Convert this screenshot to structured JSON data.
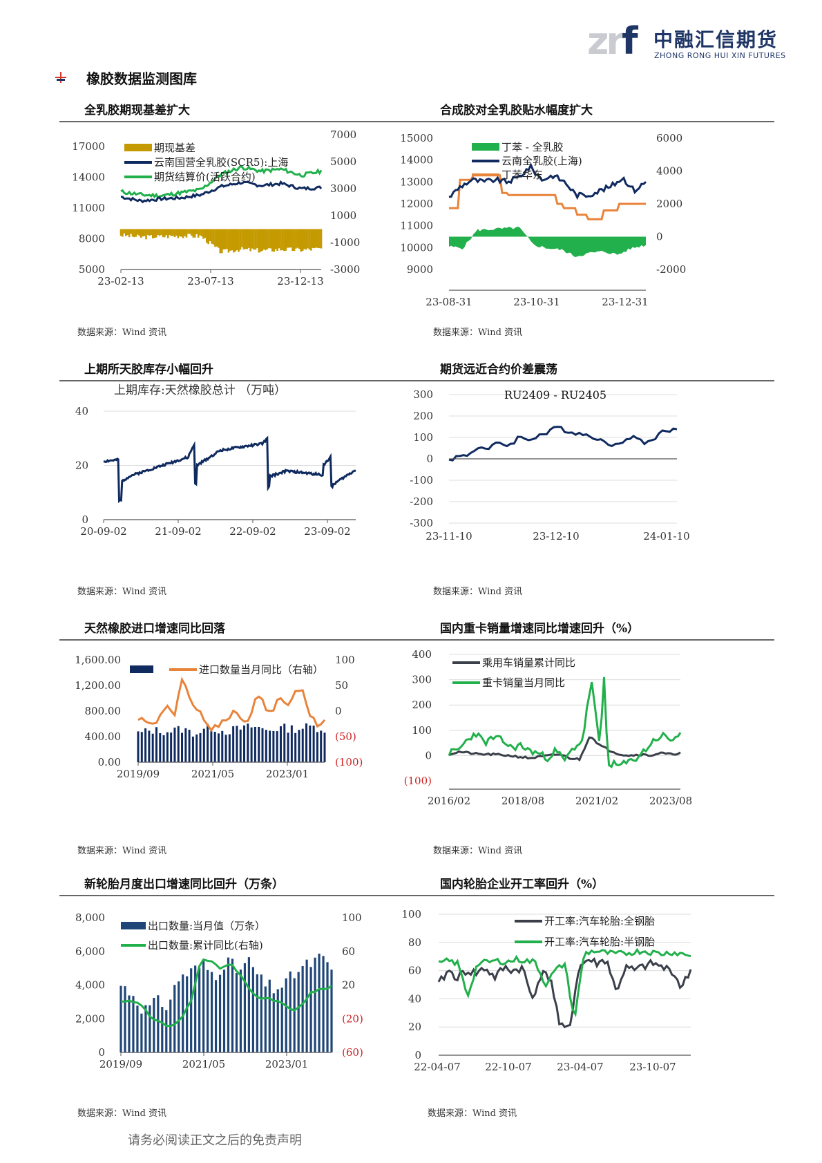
{
  "header": {
    "logo_mark": "zrf",
    "logo_cn": "中融汇信期货",
    "logo_en": "ZHONG RONG HUI XIN FUTURES",
    "section_title": "橡胶数据监测图库"
  },
  "footer_text": "请务必阅读正文之后的免责声明",
  "source_text": "数据来源：Wind 资讯",
  "colors": {
    "navy": "#0f2a5f",
    "green": "#21b04b",
    "gold": "#c49a00",
    "orange": "#e8833a",
    "gray": "#3a3f4a",
    "red": "#cc2222"
  },
  "charts": [
    {
      "id": "c1",
      "panel_title": "全乳胶期现基差扩大",
      "type": "line_bar",
      "x_ticks": [
        "23-02-13",
        "23-07-13",
        "23-12-13"
      ],
      "y_left": {
        "min": 5000,
        "max": 20000,
        "ticks": [
          "5000",
          "8000",
          "11000",
          "14000",
          "17000"
        ]
      },
      "y_right": {
        "min": -3000,
        "max": 7000,
        "ticks": [
          "-3000",
          "-1000",
          "1000",
          "3000",
          "5000",
          "7000"
        ]
      },
      "series": [
        {
          "name": "期现基差",
          "kind": "bar",
          "axis": "right",
          "color": "#c49a00"
        },
        {
          "name": "云南国营全乳胶(SCR5):上海",
          "kind": "line",
          "axis": "left",
          "color": "#0f2a5f"
        },
        {
          "name": "期货结算价(活跃合约)",
          "kind": "line",
          "axis": "left",
          "color": "#21b04b"
        }
      ]
    },
    {
      "id": "c2",
      "panel_title": "合成胶对全乳胶贴水幅度扩大",
      "type": "line_area",
      "x_ticks": [
        "23-08-31",
        "23-10-31",
        "23-12-31"
      ],
      "y_left": {
        "min": 9000,
        "max": 15000,
        "ticks": [
          "9000",
          "10000",
          "11000",
          "12000",
          "13000",
          "14000",
          "15000"
        ]
      },
      "y_right": {
        "min": -2000,
        "max": 6000,
        "ticks": [
          "-2000",
          "0",
          "2000",
          "4000",
          "6000"
        ]
      },
      "series": [
        {
          "name": "丁苯 - 全乳胶",
          "kind": "area",
          "axis": "right",
          "color": "#21b04b"
        },
        {
          "name": "云南全乳胶(上海)",
          "kind": "line",
          "axis": "left",
          "color": "#0f2a5f"
        },
        {
          "name": "丁苯华东",
          "kind": "line",
          "axis": "left",
          "color": "#e8833a"
        }
      ]
    },
    {
      "id": "c3",
      "panel_title": "上期所天胶库存小幅回升",
      "type": "line",
      "chart_title": "上期库存:天然橡胶总计  （万吨）",
      "x_ticks": [
        "20-09-02",
        "21-09-02",
        "22-09-02",
        "23-09-02"
      ],
      "y_left": {
        "min": 0,
        "max": 40,
        "ticks": [
          "0",
          "20",
          "40"
        ]
      },
      "series": [
        {
          "name": "上期库存:天然橡胶总计",
          "kind": "line",
          "axis": "left",
          "color": "#0f2a5f"
        }
      ]
    },
    {
      "id": "c4",
      "panel_title": "期货远近合约价差震荡",
      "type": "line",
      "chart_title": "RU2409 - RU2405",
      "x_ticks": [
        "23-11-10",
        "23-12-10",
        "24-01-10"
      ],
      "y_left": {
        "min": -300,
        "max": 300,
        "ticks": [
          "-300",
          "-200",
          "-100",
          "0",
          "100",
          "200",
          "300"
        ]
      },
      "series": [
        {
          "name": "RU2409 - RU2405",
          "kind": "line",
          "axis": "left",
          "color": "#0f2a5f"
        }
      ]
    },
    {
      "id": "c5",
      "panel_title": "天然橡胶进口增速同比回落",
      "type": "bar_line",
      "x_ticks": [
        "2019/09",
        "2021/05",
        "2023/01"
      ],
      "y_left": {
        "min": 0,
        "max": 1600,
        "ticks": [
          "0.00",
          "400.00",
          "800.00",
          "1,200.00",
          "1,600.00"
        ]
      },
      "y_right": {
        "min": -100,
        "max": 100,
        "ticks": [
          "(100)",
          "(50)",
          "0",
          "50",
          "100"
        ]
      },
      "series": [
        {
          "name": "",
          "kind": "bar",
          "axis": "left",
          "color": "#0f2a5f"
        },
        {
          "name": "进口数量当月同比（右轴）",
          "kind": "line",
          "axis": "right",
          "color": "#e8833a"
        }
      ]
    },
    {
      "id": "c6",
      "panel_title": "国内重卡销量增速同比增速回升（%）",
      "type": "line",
      "x_ticks": [
        "2016/02",
        "2018/08",
        "2021/02",
        "2023/08"
      ],
      "y_left": {
        "min": -100,
        "max": 400,
        "ticks": [
          "(100)",
          "0",
          "100",
          "200",
          "300",
          "400"
        ]
      },
      "series": [
        {
          "name": "乘用车销量累计同比",
          "kind": "line",
          "axis": "left",
          "color": "#3a3f4a"
        },
        {
          "name": "重卡销量当月同比",
          "kind": "line",
          "axis": "left",
          "color": "#21b04b"
        }
      ]
    },
    {
      "id": "c7",
      "panel_title": "新轮胎月度出口增速同比回升（万条）",
      "type": "bar_line",
      "x_ticks": [
        "2019/09",
        "2021/05",
        "2023/01"
      ],
      "y_left": {
        "min": 0,
        "max": 8000,
        "ticks": [
          "0",
          "2,000",
          "4,000",
          "6,000",
          "8,000"
        ]
      },
      "y_right": {
        "min": -60,
        "max": 100,
        "ticks": [
          "(60)",
          "(20)",
          "20",
          "60",
          "100"
        ]
      },
      "series": [
        {
          "name": "出口数量:当月值（万条）",
          "kind": "bar",
          "axis": "left",
          "color": "#1f4677"
        },
        {
          "name": "出口数量:累计同比(右轴)",
          "kind": "line",
          "axis": "right",
          "color": "#21b04b"
        }
      ]
    },
    {
      "id": "c8",
      "panel_title": "国内轮胎企业开工率回升（%）",
      "type": "line",
      "x_ticks": [
        "22-04-07",
        "22-10-07",
        "23-04-07",
        "23-10-07"
      ],
      "y_left": {
        "min": 0,
        "max": 100,
        "ticks": [
          "0",
          "20",
          "40",
          "60",
          "80",
          "100"
        ]
      },
      "series": [
        {
          "name": "开工率:汽车轮胎:全钢胎",
          "kind": "line",
          "axis": "left",
          "color": "#3a3f4a"
        },
        {
          "name": "开工率:汽车轮胎:半钢胎",
          "kind": "line",
          "axis": "left",
          "color": "#21b04b"
        }
      ]
    }
  ],
  "chart_data": [
    {
      "type": "bar+line",
      "title": "全乳胶期现基差扩大",
      "note": "approximate",
      "x": [
        "23-02-13",
        "23-04-13",
        "23-06-13",
        "23-07-13",
        "23-09-13",
        "23-10-13",
        "23-11-13",
        "23-12-13",
        "24-01-13"
      ],
      "series": [
        {
          "name": "期现基差",
          "values": [
            -550,
            -600,
            -500,
            -550,
            -1600,
            -1700,
            -1500,
            -1550,
            -1450
          ]
        },
        {
          "name": "云南国营全乳胶(SCR5):上海",
          "values": [
            12100,
            11800,
            12000,
            12200,
            13000,
            13400,
            13300,
            13100,
            13000
          ]
        },
        {
          "name": "期货结算价(活跃合约)",
          "values": [
            12600,
            12300,
            12400,
            12700,
            14400,
            15000,
            14700,
            14500,
            14600
          ]
        }
      ]
    },
    {
      "type": "line+area",
      "title": "合成胶对全乳胶贴水幅度扩大",
      "note": "approximate",
      "x": [
        "23-08-31",
        "23-09-30",
        "23-10-31",
        "23-11-30",
        "23-12-31",
        "24-01-15"
      ],
      "series": [
        {
          "name": "丁苯 - 全乳胶",
          "values": [
            -600,
            400,
            -700,
            -1000,
            -900,
            -700
          ]
        },
        {
          "name": "云南全乳胶(上海)",
          "values": [
            12300,
            13000,
            13100,
            12300,
            12800,
            13000
          ]
        },
        {
          "name": "丁苯华东",
          "values": [
            11800,
            13400,
            12500,
            11700,
            11200,
            12000
          ]
        }
      ]
    },
    {
      "type": "line",
      "title": "上期库存:天然橡胶总计",
      "note": "approximate",
      "x": [
        "20-09-02",
        "21-03-02",
        "21-09-02",
        "22-03-02",
        "22-09-02",
        "23-03-02",
        "23-09-02",
        "24-01-02"
      ],
      "series": [
        {
          "name": "上期库存:天然橡胶总计",
          "values": [
            21,
            17,
            20,
            25,
            28,
            18,
            18,
            18
          ]
        }
      ]
    },
    {
      "type": "line",
      "title": "RU2409 - RU2405",
      "note": "approximate",
      "x": [
        "23-11-10",
        "23-11-25",
        "23-12-10",
        "23-12-25",
        "24-01-10",
        "24-01-15"
      ],
      "series": [
        {
          "name": "RU2409 - RU2405",
          "values": [
            0,
            90,
            145,
            110,
            130,
            130
          ]
        }
      ]
    },
    {
      "type": "bar+line",
      "title": "天然橡胶进口增速同比回落",
      "note": "approximate",
      "x": [
        "2019/09",
        "2020/09",
        "2021/05",
        "2022/03",
        "2023/01",
        "2023/11"
      ],
      "series": [
        {
          "name": "",
          "values": [
            450,
            500,
            520,
            480,
            560,
            520
          ]
        },
        {
          "name": "进口数量当月同比（右轴）",
          "values": [
            -22,
            70,
            -10,
            -20,
            40,
            -20
          ]
        }
      ]
    },
    {
      "type": "line",
      "title": "国内重卡销量增速同比增速回升（%）",
      "note": "approximate",
      "x": [
        "2016/02",
        "2018/08",
        "2021/02",
        "2023/08",
        "2023/12"
      ],
      "series": [
        {
          "name": "乘用车销量累计同比",
          "values": [
            5,
            0,
            80,
            5,
            10
          ]
        },
        {
          "name": "重卡销量当月同比",
          "values": [
            10,
            30,
            300,
            -30,
            90
          ]
        }
      ]
    },
    {
      "type": "bar+line",
      "title": "新轮胎月度出口增速同比回升（万条）",
      "note": "approximate",
      "x": [
        "2019/09",
        "2020/06",
        "2021/05",
        "2022/03",
        "2023/01",
        "2023/12"
      ],
      "series": [
        {
          "name": "出口数量:当月值（万条）",
          "values": [
            3500,
            2500,
            5200,
            5400,
            4000,
            5200
          ]
        },
        {
          "name": "出口数量:累计同比(右轴)",
          "values": [
            0,
            -30,
            55,
            0,
            -5,
            15
          ]
        }
      ]
    },
    {
      "type": "line",
      "title": "国内轮胎企业开工率回升（%）",
      "note": "approximate",
      "x": [
        "22-04-07",
        "22-10-07",
        "23-01-07",
        "23-04-07",
        "23-10-07",
        "24-01-07"
      ],
      "series": [
        {
          "name": "开工率:汽车轮胎:全钢胎",
          "values": [
            55,
            58,
            18,
            65,
            60,
            55
          ]
        },
        {
          "name": "开工率:汽车轮胎:半钢胎",
          "values": [
            65,
            65,
            25,
            73,
            72,
            72
          ]
        }
      ]
    }
  ]
}
